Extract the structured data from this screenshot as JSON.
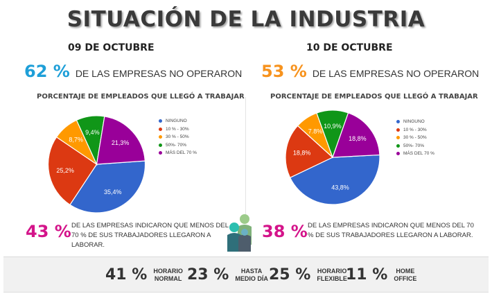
{
  "title": "SITUACIÓN DE LA INDUSTRIA",
  "colors": {
    "blue": "#3366cc",
    "red": "#dc3912",
    "orange": "#ff9900",
    "green": "#109618",
    "purple": "#990099",
    "highlight_blue": "#1e9fd8",
    "highlight_orange": "#f7931e",
    "highlight_magenta": "#d4148a"
  },
  "panels": [
    {
      "date": "09 DE OCTUBRE",
      "stat_pct": "62 %",
      "stat_pct_color": "#1e9fd8",
      "stat_text": "DE LAS EMPRESAS NO OPERARON",
      "bottom_pct": "43 %",
      "bottom_text": "DE LAS EMPRESAS INDICARON QUE MENOS DEL 70 % DE SUS TRABAJADORES LLEGARON A LABORAR."
    },
    {
      "date": "10 DE OCTUBRE",
      "stat_pct": "53 %",
      "stat_pct_color": "#f7931e",
      "stat_text": "DE LAS EMPRESAS NO OPERARON",
      "bottom_pct": "38 %",
      "bottom_text": "DE LAS EMPRESAS INDICARON QUE MENOS DEL 70 % DE SUS TRABAJADORES LLEGARON A LABORAR."
    }
  ],
  "chart_data": [
    {
      "type": "pie",
      "title": "PORCENTAJE DE EMPLEADOS QUE LLEGÓ A TRABAJAR",
      "legend_position": "right",
      "categories": [
        "NINGUNO",
        "10 % - 30%",
        "30 % - 50%",
        "50%- 70%",
        "MÁS DEL 70 %"
      ],
      "values": [
        35.4,
        25.2,
        8.7,
        9.4,
        21.3
      ],
      "labels": [
        "35,4%",
        "25,2%",
        "8,7%",
        "9,4%",
        "21,3%"
      ],
      "colors": [
        "#3366cc",
        "#dc3912",
        "#ff9900",
        "#109618",
        "#990099"
      ]
    },
    {
      "type": "pie",
      "title": "PORCENTAJE DE EMPLEADOS QUE LLEGÓ A TRABAJAR",
      "legend_position": "right",
      "categories": [
        "NINGUNO",
        "10 % - 30%",
        "30 % - 50%",
        "50%- 70%",
        "MÁS DEL 70 %"
      ],
      "values": [
        43.8,
        18.8,
        7.8,
        10.9,
        18.8
      ],
      "labels": [
        "43,8%",
        "18,8%",
        "7.8%",
        "10,9%",
        "18,8%"
      ],
      "colors": [
        "#3366cc",
        "#dc3912",
        "#ff9900",
        "#109618",
        "#990099"
      ]
    }
  ],
  "footer": [
    {
      "pct": "41 %",
      "label": "HORARIO\nNORMAL"
    },
    {
      "pct": "23 %",
      "label": "HASTA\nMEDIO DÍA"
    },
    {
      "pct": "25 %",
      "label": "HORARIO\nFLEXIBLE"
    },
    {
      "pct": "11 %",
      "label": "HOME\nOFFICE"
    }
  ]
}
